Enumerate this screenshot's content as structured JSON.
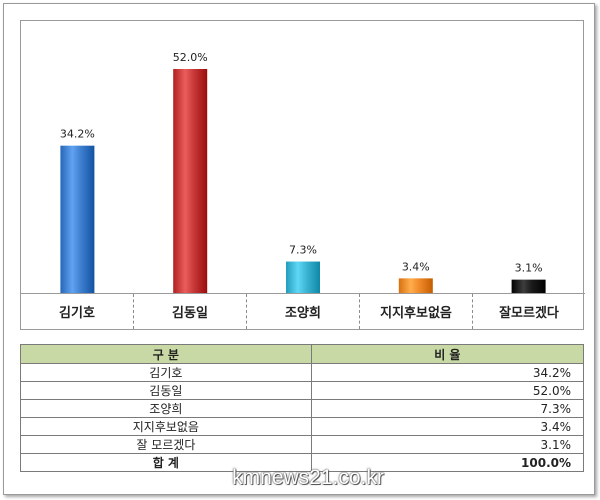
{
  "chart_data": {
    "type": "bar",
    "categories": [
      "김기호",
      "김동일",
      "조양희",
      "지지후보없음",
      "잘모르겠다"
    ],
    "values": [
      34.2,
      52.0,
      7.3,
      3.4,
      3.1
    ],
    "value_labels": [
      "34.2%",
      "52.0%",
      "7.3%",
      "3.4%",
      "3.1%"
    ],
    "colors": [
      "#3f7fd0",
      "#c83a3a",
      "#3cb4d4",
      "#f08a2a",
      "#1a1a1a"
    ],
    "title": "",
    "xlabel": "",
    "ylabel": "",
    "ylim": [
      0,
      52
    ],
    "grid": false,
    "legend": "none"
  },
  "table": {
    "headers": [
      "구 분",
      "비 율"
    ],
    "rows": [
      {
        "name": "김기호",
        "value": "34.2%"
      },
      {
        "name": "김동일",
        "value": "52.0%"
      },
      {
        "name": "조양희",
        "value": "7.3%"
      },
      {
        "name": "지지후보없음",
        "value": "3.4%"
      },
      {
        "name": "잘 모르겠다",
        "value": "3.1%"
      }
    ],
    "total": {
      "name": "합 계",
      "value": "100.0%"
    }
  },
  "watermark": "kmnews21.co.kr"
}
